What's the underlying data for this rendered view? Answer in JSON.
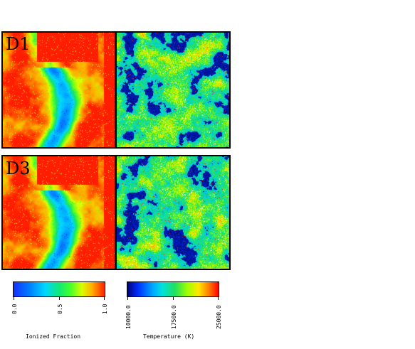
{
  "panels": [
    {
      "label": "D1",
      "fields": [
        "Ionized Fraction",
        "Temperature (K)"
      ]
    },
    {
      "label": "D3",
      "fields": [
        "Ionized Fraction",
        "Temperature (K)"
      ]
    }
  ],
  "colorbars": {
    "ionized": {
      "title": "Ionized Fraction",
      "ticks": [
        "0.0",
        "0.5",
        "1.0"
      ]
    },
    "temperature": {
      "title": "Temperature (K)",
      "ticks": [
        "10000.0",
        "17500.0",
        "25000.0"
      ]
    }
  },
  "colors": {
    "low": "#000060",
    "blue": "#1e5aff",
    "cyan": "#00d8ff",
    "green": "#18e060",
    "yellow": "#f8f000",
    "orange": "#ff8800",
    "red": "#ff1a00"
  }
}
